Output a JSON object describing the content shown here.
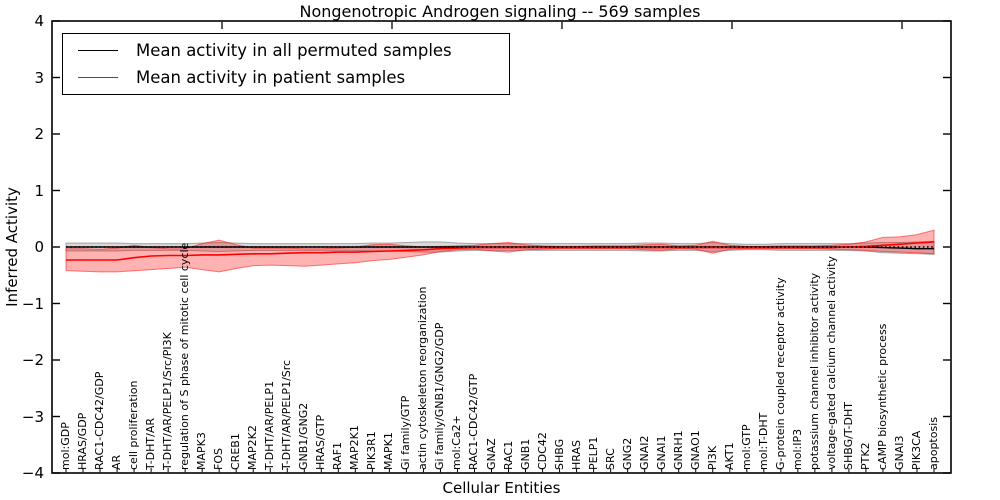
{
  "chart_data": {
    "type": "line",
    "title": "Nongenotropic Androgen signaling -- 569 samples",
    "xlabel": "Cellular Entities",
    "ylabel": "Inferred Activity",
    "ylim": [
      -4,
      4
    ],
    "grid": false,
    "legend_position": "upper left",
    "zero_line": {
      "y": 0,
      "style": "dotted",
      "color": "#000000"
    },
    "yticks": [
      {
        "v": 4,
        "label": "4"
      },
      {
        "v": 3,
        "label": "3"
      },
      {
        "v": 2,
        "label": "2"
      },
      {
        "v": 1,
        "label": "1"
      },
      {
        "v": 0,
        "label": "0"
      },
      {
        "v": -1,
        "label": "−1"
      },
      {
        "v": -2,
        "label": "−2"
      },
      {
        "v": -3,
        "label": "−3"
      },
      {
        "v": -4,
        "label": "−4"
      }
    ],
    "legend": [
      {
        "label": "Mean activity in all permuted samples",
        "color": "#000000"
      },
      {
        "label": "Mean activity in patient samples",
        "color": "#ff0000"
      }
    ],
    "categories": [
      "mol:GDP",
      "HRAS/GDP",
      "RAC1-CDC42/GDP",
      "AR",
      "cell proliferation",
      "T-DHT/AR",
      "T-DHT/AR/PELP1/Src/PI3K",
      "regulation of S phase of mitotic cell cycle",
      "MAPK3",
      "FOS",
      "CREB1",
      "MAP2K2",
      "T-DHT/AR/PELP1",
      "T-DHT/AR/PELP1/Src",
      "GNB1/GNG2",
      "HRAS/GTP",
      "RAF1",
      "MAP2K1",
      "PIK3R1",
      "MAPK1",
      "Gi family/GTP",
      "actin cytoskeleton reorganization",
      "Gi family/GNB1/GNG2/GDP",
      "mol:Ca2+",
      "RAC1-CDC42/GTP",
      "GNAZ",
      "RAC1",
      "GNB1",
      "CDC42",
      "SHBG",
      "HRAS",
      "PELP1",
      "SRC",
      "GNG2",
      "GNAI2",
      "GNAI1",
      "GNRH1",
      "GNAO1",
      "PI3K",
      "AKT1",
      "mol:GTP",
      "mol:T-DHT",
      "G-protein coupled receptor activity",
      "mol:IP3",
      "potassium channel inhibitor activity",
      "voltage-gated calcium channel activity",
      "SHBG/T-DHT",
      "PTK2",
      "cAMP biosynthetic process",
      "GNAI3",
      "PIK3CA",
      "apoptosis"
    ],
    "series": [
      {
        "name": "Mean activity in all permuted samples",
        "color": "#000000",
        "values": [
          0,
          0,
          0,
          0,
          0,
          0,
          0,
          0,
          0,
          0,
          0,
          0,
          0,
          0,
          0,
          0,
          0,
          0,
          0,
          0,
          0,
          0,
          0,
          0,
          0,
          0,
          0,
          0,
          0,
          0,
          0,
          0,
          0,
          0,
          0,
          0,
          0,
          0,
          0,
          0,
          0,
          0,
          0,
          0,
          0,
          0,
          0,
          0,
          -0.01,
          -0.02,
          -0.03,
          -0.03
        ],
        "band_upper": [
          0.07,
          0.07,
          0.07,
          0.07,
          0.06,
          0.06,
          0.06,
          0.06,
          0.07,
          0.08,
          0.07,
          0.06,
          0.06,
          0.06,
          0.06,
          0.06,
          0.06,
          0.06,
          0.07,
          0.07,
          0.08,
          0.09,
          0.09,
          0.07,
          0.06,
          0.06,
          0.06,
          0.06,
          0.06,
          0.06,
          0.06,
          0.06,
          0.06,
          0.06,
          0.07,
          0.07,
          0.06,
          0.06,
          0.08,
          0.06,
          0.05,
          0.05,
          0.06,
          0.06,
          0.06,
          0.06,
          0.06,
          0.07,
          0.08,
          0.08,
          0.09,
          0.1
        ],
        "band_lower": [
          -0.07,
          -0.07,
          -0.07,
          -0.07,
          -0.06,
          -0.06,
          -0.06,
          -0.06,
          -0.07,
          -0.08,
          -0.07,
          -0.06,
          -0.06,
          -0.06,
          -0.06,
          -0.06,
          -0.06,
          -0.06,
          -0.07,
          -0.07,
          -0.08,
          -0.09,
          -0.09,
          -0.07,
          -0.06,
          -0.06,
          -0.06,
          -0.06,
          -0.06,
          -0.06,
          -0.06,
          -0.06,
          -0.06,
          -0.06,
          -0.07,
          -0.07,
          -0.06,
          -0.06,
          -0.08,
          -0.06,
          -0.05,
          -0.05,
          -0.06,
          -0.06,
          -0.06,
          -0.06,
          -0.06,
          -0.07,
          -0.1,
          -0.11,
          -0.12,
          -0.13
        ]
      },
      {
        "name": "Mean activity in patient samples",
        "color": "#ff0000",
        "values": [
          -0.23,
          -0.23,
          -0.23,
          -0.23,
          -0.19,
          -0.16,
          -0.15,
          -0.15,
          -0.14,
          -0.14,
          -0.13,
          -0.12,
          -0.12,
          -0.11,
          -0.1,
          -0.1,
          -0.09,
          -0.09,
          -0.08,
          -0.07,
          -0.06,
          -0.05,
          -0.03,
          -0.02,
          -0.01,
          -0.01,
          -0.01,
          -0.01,
          -0.01,
          -0.01,
          -0.01,
          -0.01,
          -0.01,
          -0.01,
          -0.01,
          -0.01,
          -0.01,
          -0.01,
          -0.01,
          -0.01,
          -0.01,
          -0.01,
          -0.01,
          -0.01,
          -0.01,
          -0.01,
          0.0,
          0.01,
          0.03,
          0.05,
          0.07,
          0.09
        ],
        "band_upper": [
          -0.03,
          -0.03,
          -0.04,
          -0.02,
          0.03,
          -0.01,
          -0.03,
          -0.03,
          0.06,
          0.12,
          0.04,
          -0.02,
          -0.02,
          -0.02,
          -0.03,
          -0.03,
          -0.02,
          0.0,
          0.04,
          0.05,
          0.02,
          0.0,
          0.01,
          0.02,
          0.03,
          0.06,
          0.08,
          0.04,
          0.02,
          0.01,
          0.01,
          0.02,
          0.02,
          0.02,
          0.04,
          0.05,
          0.02,
          0.03,
          0.1,
          0.03,
          0.01,
          0.01,
          0.02,
          0.02,
          0.02,
          0.03,
          0.05,
          0.09,
          0.17,
          0.18,
          0.22,
          0.3
        ],
        "band_lower": [
          -0.42,
          -0.43,
          -0.44,
          -0.44,
          -0.42,
          -0.4,
          -0.38,
          -0.36,
          -0.4,
          -0.44,
          -0.38,
          -0.33,
          -0.32,
          -0.33,
          -0.34,
          -0.32,
          -0.3,
          -0.28,
          -0.24,
          -0.22,
          -0.18,
          -0.14,
          -0.08,
          -0.05,
          -0.04,
          -0.07,
          -0.09,
          -0.05,
          -0.04,
          -0.03,
          -0.03,
          -0.03,
          -0.03,
          -0.03,
          -0.05,
          -0.06,
          -0.03,
          -0.04,
          -0.11,
          -0.04,
          -0.03,
          -0.03,
          -0.03,
          -0.03,
          -0.03,
          -0.04,
          -0.05,
          -0.06,
          -0.08,
          -0.09,
          -0.1,
          -0.12
        ]
      }
    ]
  }
}
